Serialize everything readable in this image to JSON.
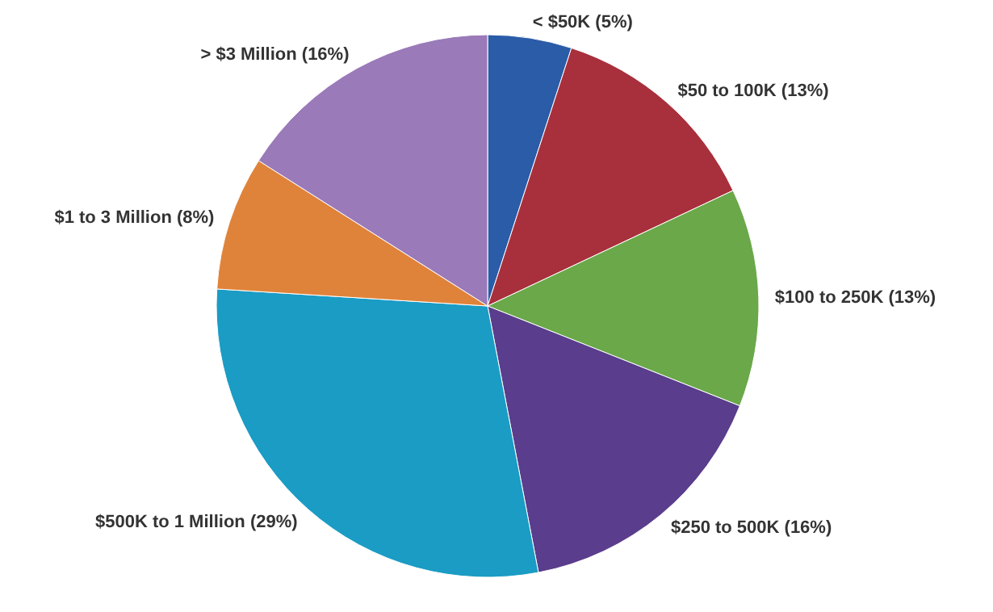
{
  "chart_data": {
    "type": "pie",
    "categories": [
      "< $50K (5%)",
      "$50 to 100K (13%)",
      "$100 to 250K (13%)",
      "$250 to 500K (16%)",
      "$500K to 1 Million (29%)",
      "$1 to 3 Million (8%)",
      "> $3 Million (16%)"
    ],
    "values": [
      5,
      13,
      13,
      16,
      29,
      8,
      16
    ],
    "colors": [
      "#2a5ca8",
      "#a8303c",
      "#6aa84a",
      "#5a3d8c",
      "#1a9cc4",
      "#e0833a",
      "#9a7ab8"
    ],
    "legend": false
  }
}
